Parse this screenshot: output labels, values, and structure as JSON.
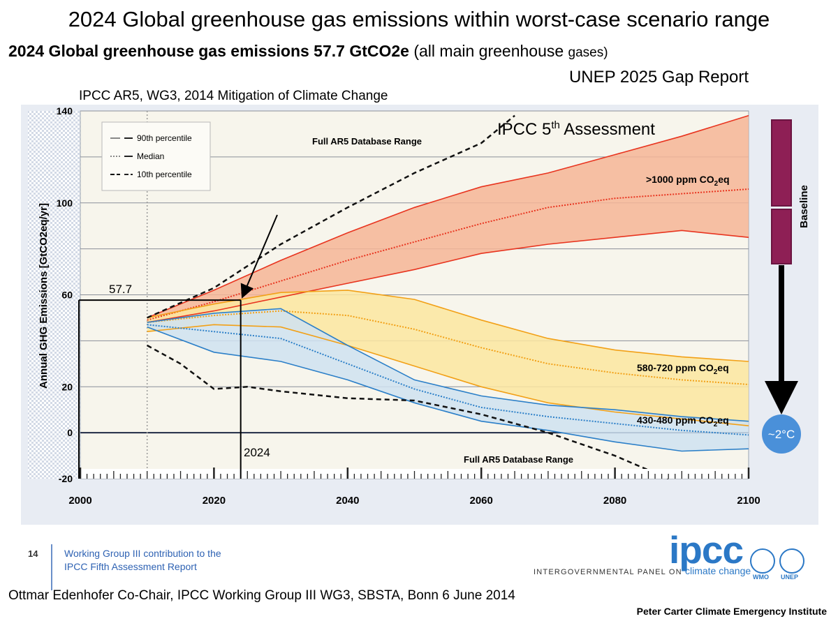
{
  "header": {
    "title": "2024 Global greenhouse gas emissions within worst-case scenario range",
    "subtitle_bold": "2024 Global greenhouse gas emissions 57.7 GtCO2e",
    "subtitle_rest": "(all main greenhouse",
    "subtitle_small": "gases)",
    "source": "UNEP 2025 Gap Report",
    "ipcc_reference": "IPCC AR5, WG3, 2014 Mitigation of Climate Change"
  },
  "chart_data": {
    "type": "area",
    "ylabel": "Annual GHG Emissions [GtCO2eq/yr]",
    "xlim": [
      2000,
      2100
    ],
    "ylim": [
      -20,
      140
    ],
    "x_ticks": [
      "2000",
      "2020",
      "2040",
      "2060",
      "2080",
      "2100"
    ],
    "y_ticks": [
      "140",
      "100",
      "60",
      "20",
      "0",
      "-20"
    ],
    "grid": true,
    "legend": {
      "placement": "top-left",
      "entries": [
        "90th percentile",
        "Median",
        "10th percentile"
      ]
    },
    "annotations": {
      "db_range_top": "Full AR5 Database Range",
      "db_range_bottom": "Full AR5 Database Range",
      "ipcc5": "IPCC 5",
      "ipcc5_sup": "th",
      "ipcc5_rest": " Assessment",
      "marker_value": "57.7",
      "marker_year": "2024",
      "baseline": "Baseline",
      "two_degrees": "~2°C"
    },
    "marker": {
      "x": 2024,
      "y": 57.7
    },
    "series": [
      {
        "name": ">1000 ppm CO2eq",
        "label_main": ">1000 ppm CO",
        "label_sub": "2",
        "label_end": "eq",
        "color": "#e8341f",
        "fill": "#f6b597",
        "x": [
          2010,
          2020,
          2030,
          2040,
          2050,
          2060,
          2070,
          2080,
          2090,
          2100
        ],
        "p90": [
          50,
          62,
          75,
          87,
          98,
          107,
          113,
          121,
          129,
          138
        ],
        "median": [
          49,
          57,
          66,
          75,
          83,
          91,
          98,
          102,
          104,
          106
        ],
        "p10": [
          48,
          53,
          59,
          65,
          71,
          78,
          82,
          85,
          88,
          85
        ]
      },
      {
        "name": "580-720 ppm CO2eq",
        "label_main": "580-720 ppm CO",
        "label_sub": "2",
        "label_end": "eq",
        "color": "#f2a016",
        "fill": "#fbe6a0",
        "x": [
          2010,
          2020,
          2030,
          2040,
          2050,
          2060,
          2070,
          2080,
          2090,
          2100
        ],
        "p90": [
          50,
          56,
          61,
          62,
          58,
          49,
          41,
          36,
          33,
          31
        ],
        "median": [
          48,
          51,
          53,
          51,
          45,
          37,
          30,
          26,
          23,
          21
        ],
        "p10": [
          44,
          47,
          46,
          38,
          29,
          20,
          13,
          9,
          6,
          3
        ]
      },
      {
        "name": "430-480 ppm CO2eq",
        "label_main": "430-480 ppm CO",
        "label_sub": "2",
        "label_end": "eq",
        "color": "#2b7fc8",
        "fill": "#cfe2f1",
        "x": [
          2010,
          2020,
          2030,
          2040,
          2050,
          2060,
          2070,
          2080,
          2090,
          2100
        ],
        "p90": [
          48,
          52,
          54,
          38,
          23,
          16,
          12,
          10,
          7,
          5
        ],
        "median": [
          47,
          44,
          41,
          30,
          19,
          11,
          7,
          4,
          1,
          -1
        ],
        "p10": [
          46,
          35,
          31,
          23,
          13,
          5,
          1,
          -4,
          -8,
          -7
        ]
      }
    ],
    "full_range_upper": {
      "x": [
        2010,
        2020,
        2030,
        2040,
        2050,
        2060,
        2065
      ],
      "y": [
        50,
        63,
        82,
        98,
        113,
        126,
        138
      ]
    },
    "full_range_lower": {
      "x": [
        2010,
        2015,
        2020,
        2025,
        2030,
        2040,
        2050,
        2060,
        2070,
        2080,
        2088
      ],
      "y": [
        38,
        30,
        19,
        20,
        18,
        15,
        14,
        8,
        0,
        -10,
        -20
      ]
    }
  },
  "footer": {
    "page_number": "14",
    "wg_line1": "Working Group III contribution to the",
    "wg_line2": "IPCC Fifth Assessment Report",
    "logo_text": "ipcc",
    "tagline_left": "INTERGOVERNMENTAL PANEL ON",
    "tagline_right": "climate change",
    "wmo": "WMO",
    "unep": "UNEP",
    "credit_left": "Ottmar Edenhofer Co-Chair, IPCC Working Group III WG3, SBSTA, Bonn 6 June 2014",
    "credit_right": "Peter Carter Climate Emergency Institute"
  },
  "colors": {
    "chart_bg": "#f7f5ec",
    "panel_bg": "#e8ecf3",
    "baseline_bar": "#8e1f55",
    "two_degree_circle": "#4a90d9"
  }
}
